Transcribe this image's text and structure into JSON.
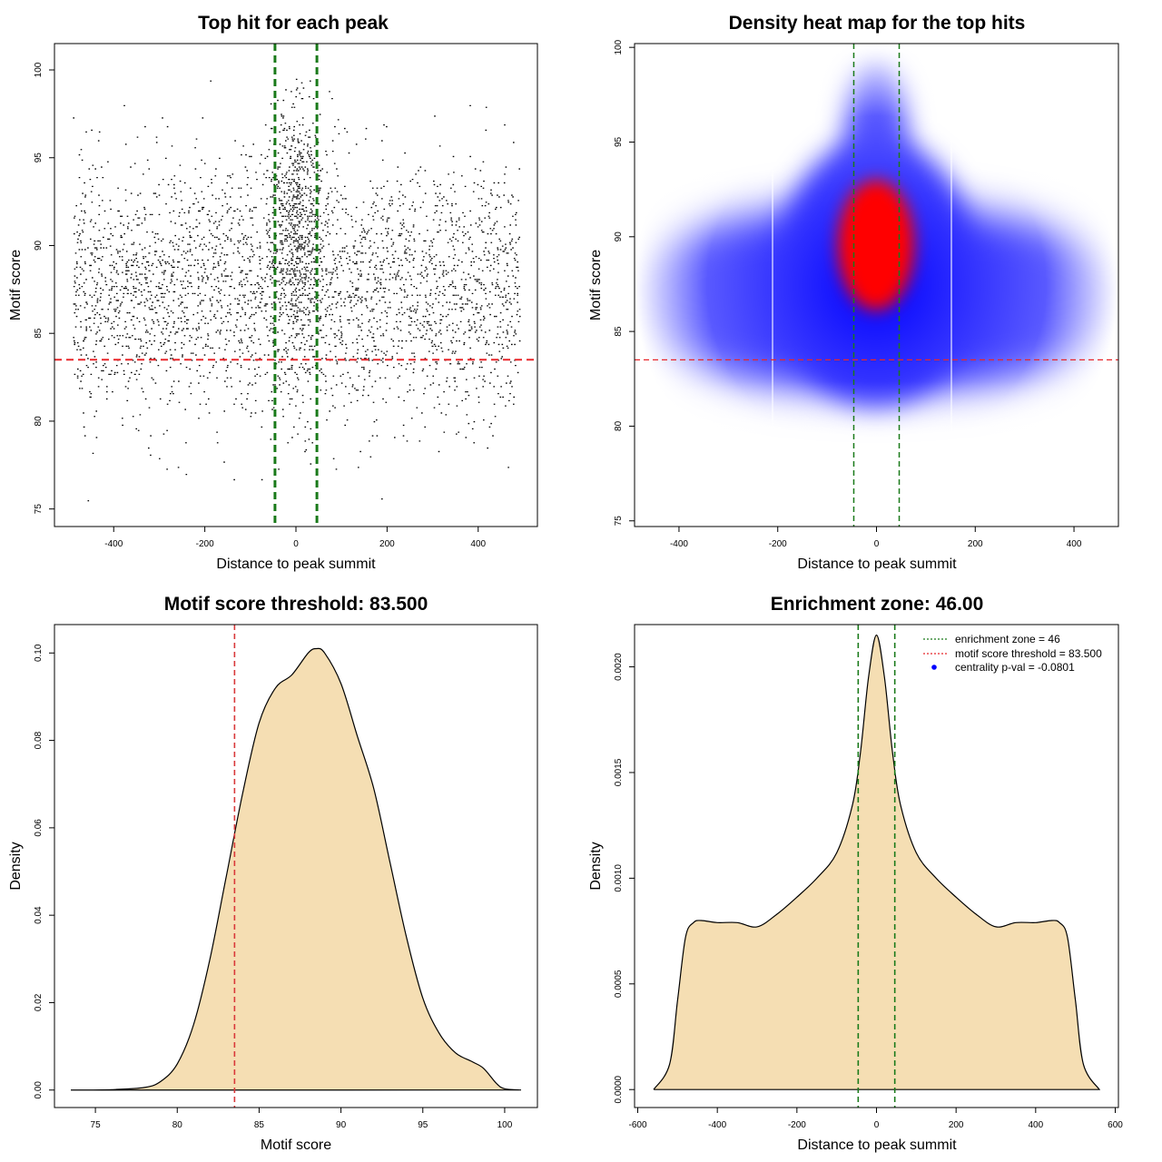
{
  "chart_data": [
    {
      "type": "scatter",
      "title": "Top hit for each peak",
      "xlabel": "Distance to peak summit",
      "ylabel": "Motif score",
      "xlim": [
        -530,
        530
      ],
      "ylim": [
        74,
        101.5
      ],
      "xticks": [
        -400,
        -200,
        0,
        200,
        400
      ],
      "yticks": [
        75,
        80,
        85,
        90,
        95,
        100
      ],
      "hline": 83.5,
      "vlines": [
        -46,
        46
      ],
      "hline_color": "#e8262a",
      "vline_color": "#1a7a1a",
      "point_color": "#000000",
      "distribution": {
        "background": {
          "x_range": [
            -490,
            490
          ],
          "score_mean": 87.5,
          "score_sd": 3.6,
          "fraction": 0.82
        },
        "central": {
          "x_mean": 0,
          "x_sd": 28,
          "score_mean": 91.0,
          "score_sd": 3.8,
          "fraction": 0.18
        }
      }
    },
    {
      "type": "heatmap",
      "title": "Density heat map for the top hits",
      "xlabel": "Distance to peak summit",
      "ylabel": "Motif score",
      "xlim": [
        -490,
        490
      ],
      "ylim": [
        74.7,
        100.2
      ],
      "xticks": [
        -400,
        -200,
        0,
        200,
        400
      ],
      "yticks": [
        75,
        80,
        85,
        90,
        95,
        100
      ],
      "hline": 83.5,
      "vlines": [
        -46,
        46
      ],
      "hline_color": "#e8262a",
      "vline_color": "#1a7a1a",
      "colors": [
        "#ffffff",
        "#0000ff",
        "#ff0000"
      ],
      "density_peak": {
        "x": 0,
        "y": 89.6
      }
    },
    {
      "type": "area",
      "title": "Motif score threshold: 83.500",
      "xlabel": "Motif score",
      "ylabel": "Density",
      "xlim": [
        72.5,
        102
      ],
      "ylim": [
        -0.004,
        0.1065
      ],
      "xticks": [
        75,
        80,
        85,
        90,
        95,
        100
      ],
      "yticks": [
        "0.00",
        "0.02",
        "0.04",
        "0.06",
        "0.08",
        "0.10"
      ],
      "vline": 83.5,
      "vline_color": "#d9383a",
      "fill": "#f5deb3",
      "x": [
        73.5,
        76,
        78,
        79,
        80,
        81,
        82,
        83,
        84,
        85,
        86,
        87,
        88,
        88.5,
        89,
        90,
        91,
        92,
        93,
        94,
        95,
        96,
        97,
        98,
        98.7,
        99.5,
        100,
        101
      ],
      "y": [
        0.0,
        0.0001,
        0.0006,
        0.002,
        0.006,
        0.015,
        0.03,
        0.049,
        0.068,
        0.084,
        0.092,
        0.095,
        0.1,
        0.101,
        0.1,
        0.093,
        0.081,
        0.069,
        0.052,
        0.035,
        0.021,
        0.013,
        0.0085,
        0.0065,
        0.005,
        0.0015,
        0.0003,
        0.0
      ]
    },
    {
      "type": "area",
      "title": "Enrichment zone: 46.00",
      "xlabel": "Distance to peak summit",
      "ylabel": "Density",
      "xlim": [
        -608,
        608
      ],
      "ylim": [
        -8.5e-05,
        0.0022
      ],
      "xticks": [
        -600,
        -400,
        -200,
        0,
        200,
        400,
        600
      ],
      "yticks": [
        "0.0000",
        "0.0005",
        "0.0010",
        "0.0015",
        "0.0020"
      ],
      "vlines": [
        -46,
        46
      ],
      "vline_color": "#1a7a1a",
      "fill": "#f5deb3",
      "x": [
        -560,
        -520,
        -500,
        -480,
        -460,
        -440,
        -400,
        -350,
        -300,
        -250,
        -200,
        -150,
        -100,
        -60,
        -40,
        -20,
        0,
        20,
        40,
        60,
        100,
        150,
        200,
        250,
        300,
        350,
        400,
        440,
        460,
        480,
        500,
        520,
        560
      ],
      "y": [
        0.0,
        0.00012,
        0.00042,
        0.00072,
        0.00079,
        0.0008,
        0.00079,
        0.00079,
        0.00077,
        0.00083,
        0.00091,
        0.001,
        0.00112,
        0.00135,
        0.0016,
        0.00195,
        0.00215,
        0.00195,
        0.0016,
        0.00135,
        0.00112,
        0.001,
        0.00091,
        0.00083,
        0.00077,
        0.00079,
        0.00079,
        0.0008,
        0.00079,
        0.00072,
        0.00042,
        0.00012,
        0.0
      ],
      "legend": {
        "placement": "top-right",
        "entries": [
          {
            "label": "enrichment zone = 46",
            "color": "#1a7a1a",
            "kind": "dotted-line"
          },
          {
            "label": "motif score threshold = 83.500",
            "color": "#e8262a",
            "kind": "dotted-line"
          },
          {
            "label": "centrality p-val = -0.0801",
            "color": "#0000ff",
            "kind": "point"
          }
        ]
      }
    }
  ]
}
